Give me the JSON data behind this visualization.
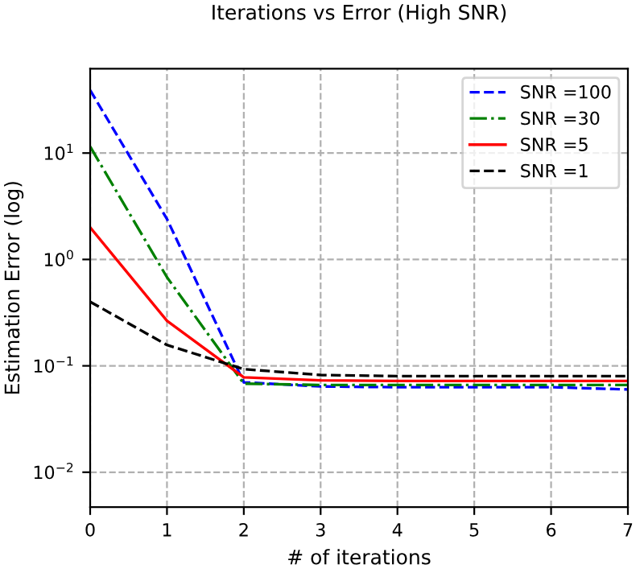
{
  "chart_data": {
    "type": "line",
    "title": "Iterations vs Error (High SNR)",
    "xlabel": "# of iterations",
    "ylabel": "Estimation Error (log)",
    "x": [
      0,
      1,
      2,
      3,
      4,
      5,
      6,
      7
    ],
    "series": [
      {
        "name": "SNR =100",
        "color": "#0000ff",
        "line_style": "dashed",
        "values": [
          39,
          2.4,
          0.07,
          0.064,
          0.063,
          0.063,
          0.063,
          0.06
        ]
      },
      {
        "name": "SNR =30",
        "color": "#008000",
        "line_style": "dashdot",
        "values": [
          11.5,
          0.68,
          0.068,
          0.066,
          0.066,
          0.066,
          0.066,
          0.066
        ]
      },
      {
        "name": "SNR =5",
        "color": "#ff0000",
        "line_style": "solid",
        "values": [
          2.0,
          0.265,
          0.078,
          0.073,
          0.072,
          0.072,
          0.072,
          0.072
        ]
      },
      {
        "name": "SNR =1",
        "color": "#000000",
        "line_style": "dashed",
        "values": [
          0.4,
          0.157,
          0.093,
          0.082,
          0.08,
          0.08,
          0.08,
          0.08
        ]
      }
    ],
    "log": "y",
    "xlim": [
      0,
      7
    ],
    "xticks": [
      0,
      1,
      2,
      3,
      4,
      5,
      6,
      7
    ],
    "ylim": [
      0.0047,
      62
    ],
    "yticks": [
      {
        "value": 0.01,
        "label": "10$^{−2}$"
      },
      {
        "value": 0.1,
        "label": "10$^{−1}$"
      },
      {
        "value": 1,
        "label": "10$^{0}$"
      },
      {
        "value": 10,
        "label": "10$^{1}$"
      }
    ],
    "grid": true,
    "legend": "top right"
  }
}
